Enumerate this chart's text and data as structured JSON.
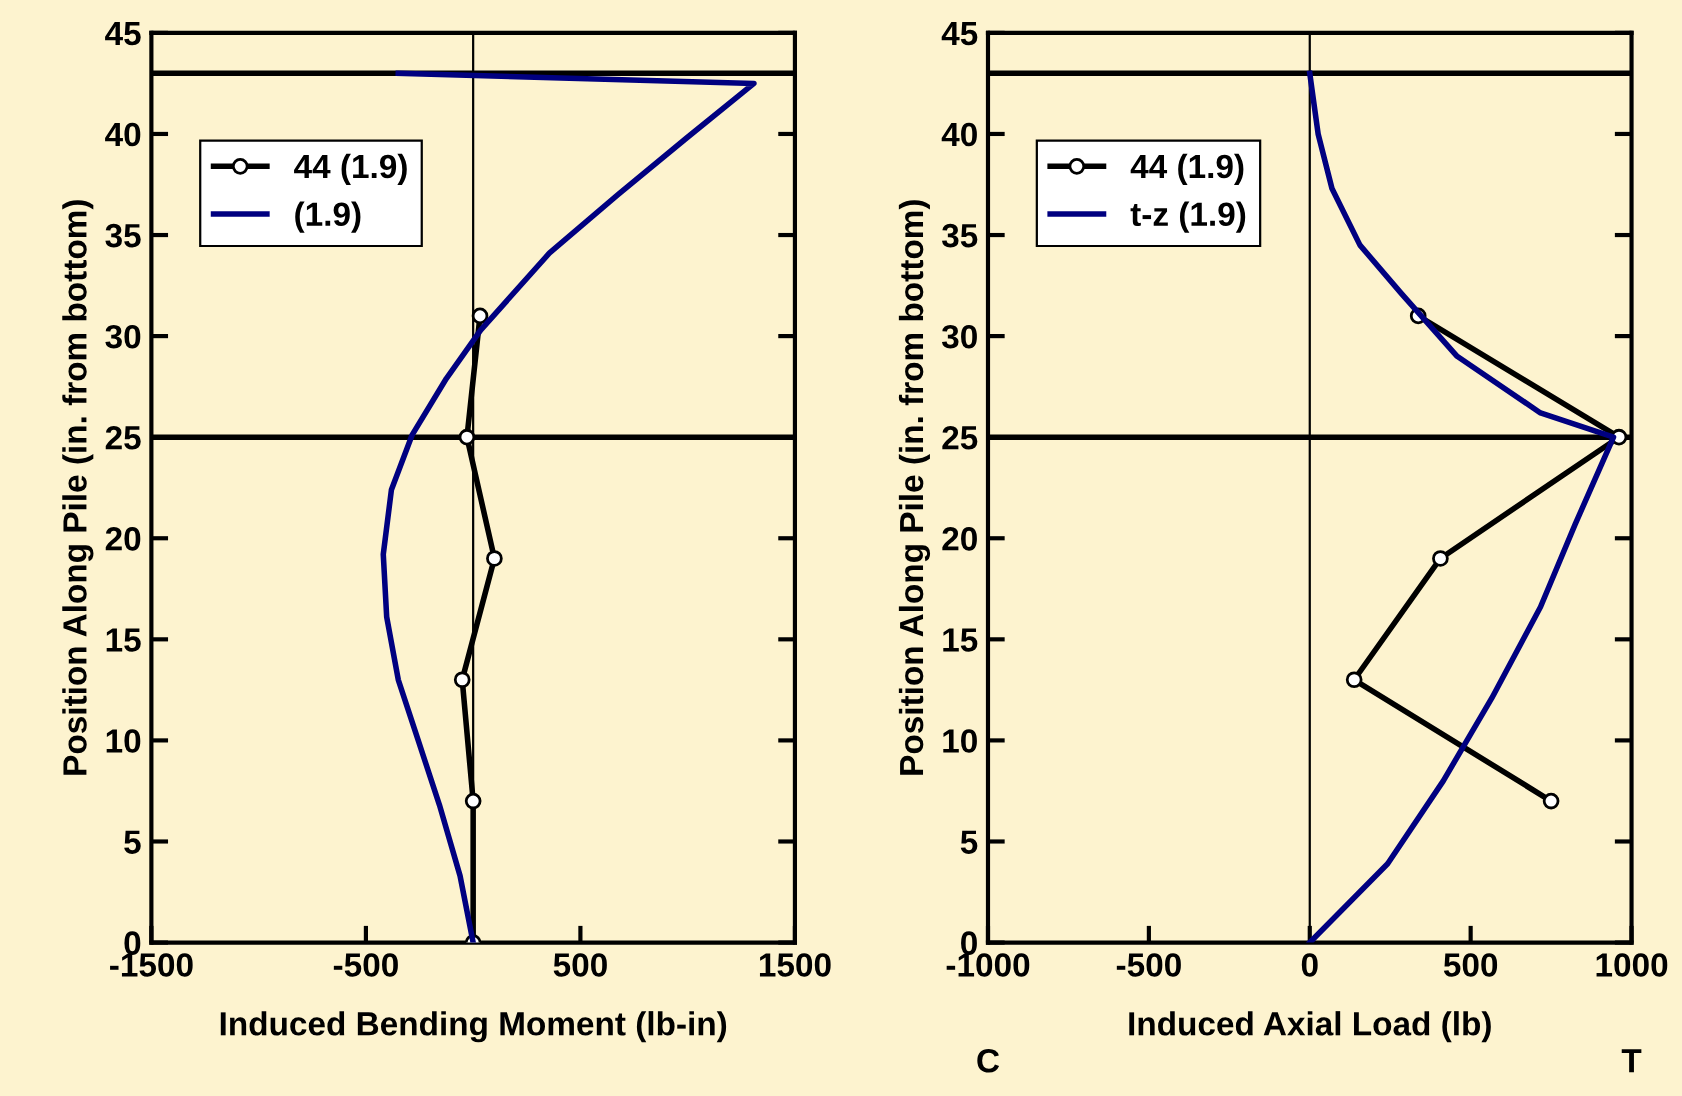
{
  "chart_data": [
    {
      "type": "line",
      "xlabel": "Induced Bending Moment (lb-in)",
      "ylabel": "Position Along Pile (in. from bottom)",
      "xlim": [
        -1500,
        1500
      ],
      "xticks": [
        -1500,
        -500,
        500,
        1500
      ],
      "ylim": [
        0,
        45
      ],
      "yticks": [
        0,
        5,
        10,
        15,
        20,
        25,
        30,
        35,
        40,
        45
      ],
      "grid": false,
      "legend": "top left",
      "ref_lines": [
        {
          "axis": "y",
          "value": 43,
          "color": "#000000"
        },
        {
          "axis": "y",
          "value": 25,
          "color": "#000000"
        },
        {
          "axis": "x",
          "value": 0,
          "color": "#000000"
        }
      ],
      "series": [
        {
          "name": "44 (1.9)",
          "color": "#000000",
          "marker": "circle",
          "x": [
            32,
            -29,
            99,
            -51,
            0,
            0
          ],
          "values": [
            31,
            25,
            19,
            13,
            7,
            0
          ]
        },
        {
          "name": "(1.9)",
          "color": "#000080",
          "marker": "none",
          "x": [
            -349,
            1309,
            995,
            675,
            355,
            35,
            -125,
            -285,
            -381,
            -419,
            -403,
            -349,
            -253,
            -157,
            -61,
            0
          ],
          "values": [
            43,
            42.5,
            39.8,
            37,
            34.1,
            30.3,
            27.9,
            25.1,
            22.4,
            19.2,
            16.1,
            13,
            9.9,
            6.8,
            3.3,
            0
          ]
        }
      ]
    },
    {
      "type": "line",
      "xlabel": "Induced Axial Load (lb)",
      "ylabel": "Position Along Pile (in. from bottom)",
      "xlim": [
        -1000,
        1000
      ],
      "xticks": [
        -1000,
        -500,
        0,
        500,
        1000
      ],
      "ylim": [
        0,
        45
      ],
      "yticks": [
        0,
        5,
        10,
        15,
        20,
        25,
        30,
        35,
        40,
        45
      ],
      "grid": false,
      "legend": "top left",
      "annotations": [
        "C",
        "T"
      ],
      "ref_lines": [
        {
          "axis": "y",
          "value": 43,
          "color": "#000000"
        },
        {
          "axis": "y",
          "value": 25,
          "color": "#000000"
        },
        {
          "axis": "x",
          "value": 0,
          "color": "#000000"
        }
      ],
      "series": [
        {
          "name": "44 (1.9)",
          "color": "#000000",
          "marker": "circle",
          "x": [
            337,
            961,
            406,
            138,
            750
          ],
          "values": [
            31,
            25,
            19,
            13,
            7
          ]
        },
        {
          "name": "t-z (1.9)",
          "color": "#000080",
          "marker": "none",
          "x": [
            0,
            26,
            69,
            156,
            285,
            458,
            717,
            944,
            825,
            717,
            566,
            415,
            242,
            0
          ],
          "values": [
            43,
            40,
            37.3,
            34.5,
            32.1,
            29,
            26.2,
            25,
            20.7,
            16.6,
            12.1,
            8,
            3.9,
            0
          ]
        }
      ]
    }
  ]
}
